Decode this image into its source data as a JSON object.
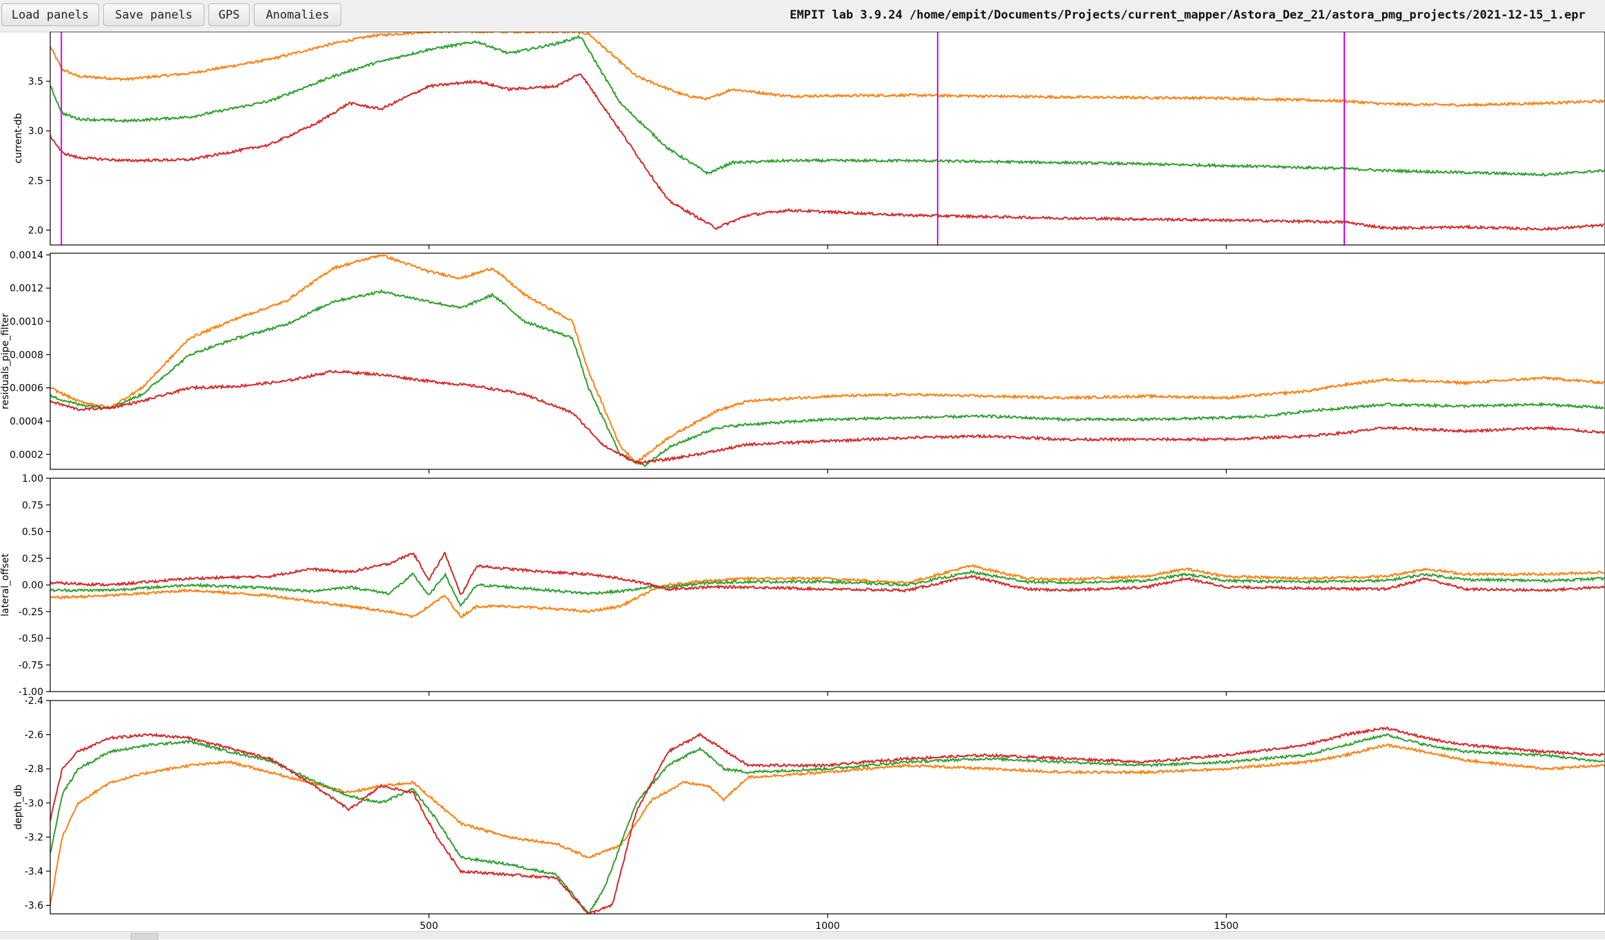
{
  "toolbar": {
    "buttons": [
      "Load panels",
      "Save panels",
      "GPS",
      "Anomalies"
    ],
    "title": "EMPIT lab 3.9.24 /home/empit/Documents/Projects/current_mapper/Astora_Dez_21/astora_pmg_projects/2021-12-15_1.epr"
  },
  "colors": {
    "orange": "#ff7f0e",
    "green": "#2ca02c",
    "red": "#d62728",
    "marker": "#e000e0"
  },
  "chart_data": [
    {
      "type": "line",
      "ylabel": "current-db",
      "xlim": [
        25,
        1975
      ],
      "ylim": [
        1.85,
        4.0
      ],
      "yticks": [
        2.0,
        2.5,
        3.0,
        3.5
      ],
      "ytick_labels": [
        "2.0",
        "2.5",
        "3.0",
        "3.5"
      ],
      "xticks": [
        500,
        1000,
        1500
      ],
      "vertical_markers": [
        39,
        1138,
        1648
      ],
      "series": [
        {
          "color": "orange",
          "x": [
            25,
            40,
            60,
            120,
            200,
            300,
            380,
            430,
            500,
            560,
            620,
            680,
            700,
            760,
            820,
            850,
            880,
            950,
            1100,
            1300,
            1500,
            1650,
            1700,
            1800,
            1900,
            1975
          ],
          "y": [
            3.85,
            3.62,
            3.55,
            3.52,
            3.58,
            3.72,
            3.88,
            3.96,
            4.0,
            4.0,
            4.0,
            4.0,
            3.98,
            3.55,
            3.36,
            3.32,
            3.42,
            3.35,
            3.36,
            3.34,
            3.33,
            3.3,
            3.27,
            3.26,
            3.28,
            3.3
          ]
        },
        {
          "color": "green",
          "x": [
            25,
            40,
            60,
            120,
            200,
            300,
            380,
            430,
            500,
            560,
            600,
            660,
            690,
            740,
            800,
            850,
            880,
            950,
            1100,
            1300,
            1500,
            1650,
            1700,
            1800,
            1900,
            1975
          ],
          "y": [
            3.45,
            3.18,
            3.12,
            3.1,
            3.14,
            3.3,
            3.55,
            3.68,
            3.82,
            3.9,
            3.78,
            3.88,
            3.95,
            3.28,
            2.82,
            2.57,
            2.68,
            2.7,
            2.7,
            2.68,
            2.65,
            2.62,
            2.6,
            2.58,
            2.56,
            2.6
          ]
        },
        {
          "color": "red",
          "x": [
            25,
            40,
            60,
            120,
            200,
            300,
            360,
            400,
            440,
            500,
            560,
            600,
            660,
            690,
            740,
            800,
            860,
            900,
            950,
            1100,
            1300,
            1500,
            1650,
            1700,
            1800,
            1900,
            1975
          ],
          "y": [
            2.95,
            2.78,
            2.73,
            2.7,
            2.71,
            2.86,
            3.08,
            3.28,
            3.22,
            3.45,
            3.5,
            3.42,
            3.45,
            3.58,
            3.0,
            2.3,
            2.02,
            2.15,
            2.2,
            2.15,
            2.12,
            2.1,
            2.08,
            2.02,
            2.03,
            2.01,
            2.05
          ]
        }
      ]
    },
    {
      "type": "line",
      "ylabel": "residuals_pipe_filter",
      "xlim": [
        25,
        1975
      ],
      "ylim": [
        0.00011,
        0.00141
      ],
      "yticks": [
        0.0002,
        0.0004,
        0.0006,
        0.0008,
        0.001,
        0.0012,
        0.0014
      ],
      "ytick_labels": [
        "0.0002",
        "0.0004",
        "0.0006",
        "0.0008",
        "0.0010",
        "0.0012",
        "0.0014"
      ],
      "xticks": [
        500,
        1000,
        1500
      ],
      "series": [
        {
          "color": "orange",
          "x": [
            25,
            60,
            100,
            140,
            200,
            260,
            320,
            380,
            440,
            500,
            540,
            580,
            620,
            680,
            700,
            740,
            760,
            800,
            860,
            900,
            1000,
            1100,
            1200,
            1300,
            1400,
            1500,
            1550,
            1600,
            1650,
            1700,
            1800,
            1900,
            1975
          ],
          "y": [
            0.0006,
            0.00052,
            0.00048,
            0.0006,
            0.0009,
            0.00102,
            0.00112,
            0.00132,
            0.0014,
            0.0013,
            0.00126,
            0.00132,
            0.00116,
            0.001,
            0.0007,
            0.00025,
            0.00015,
            0.0003,
            0.00046,
            0.00052,
            0.00055,
            0.00056,
            0.00055,
            0.00054,
            0.00055,
            0.00054,
            0.00056,
            0.00058,
            0.00062,
            0.00065,
            0.00063,
            0.00066,
            0.00063
          ]
        },
        {
          "color": "green",
          "x": [
            25,
            60,
            100,
            140,
            200,
            260,
            320,
            380,
            440,
            500,
            540,
            580,
            620,
            680,
            700,
            740,
            770,
            800,
            860,
            900,
            1000,
            1100,
            1200,
            1300,
            1400,
            1500,
            1550,
            1600,
            1650,
            1700,
            1800,
            1900,
            1975
          ],
          "y": [
            0.00055,
            0.0005,
            0.00048,
            0.00056,
            0.0008,
            0.0009,
            0.00098,
            0.00112,
            0.00118,
            0.00112,
            0.00108,
            0.00116,
            0.001,
            0.0009,
            0.0006,
            0.0002,
            0.00013,
            0.00024,
            0.00036,
            0.00038,
            0.00041,
            0.00042,
            0.00043,
            0.00041,
            0.00041,
            0.00042,
            0.00043,
            0.00046,
            0.00048,
            0.0005,
            0.00049,
            0.0005,
            0.00048
          ]
        },
        {
          "color": "red",
          "x": [
            25,
            60,
            100,
            140,
            200,
            260,
            320,
            380,
            440,
            500,
            560,
            620,
            680,
            720,
            760,
            800,
            860,
            900,
            1000,
            1100,
            1200,
            1300,
            1400,
            1500,
            1550,
            1600,
            1650,
            1700,
            1800,
            1900,
            1975
          ],
          "y": [
            0.00052,
            0.00047,
            0.00048,
            0.00052,
            0.0006,
            0.00061,
            0.00064,
            0.0007,
            0.00068,
            0.00064,
            0.00061,
            0.00056,
            0.00045,
            0.00025,
            0.00015,
            0.00017,
            0.00022,
            0.00026,
            0.00028,
            0.0003,
            0.00031,
            0.00029,
            0.00029,
            0.00029,
            0.0003,
            0.00031,
            0.00033,
            0.00036,
            0.00034,
            0.00036,
            0.00033
          ]
        }
      ]
    },
    {
      "type": "line",
      "ylabel": "lateral_offset",
      "xlim": [
        25,
        1975
      ],
      "ylim": [
        -1.0,
        1.0
      ],
      "yticks": [
        -1.0,
        -0.75,
        -0.5,
        -0.25,
        0.0,
        0.25,
        0.5,
        0.75,
        1.0
      ],
      "ytick_labels": [
        "-1.00",
        "-0.75",
        "-0.50",
        "-0.25",
        "0.00",
        "0.25",
        "0.50",
        "0.75",
        "1.00"
      ],
      "xticks": [
        500,
        1000,
        1500
      ],
      "series": [
        {
          "color": "orange",
          "x": [
            25,
            100,
            200,
            300,
            350,
            400,
            450,
            480,
            500,
            520,
            540,
            560,
            600,
            650,
            700,
            740,
            780,
            800,
            850,
            900,
            1000,
            1100,
            1180,
            1250,
            1300,
            1400,
            1450,
            1500,
            1600,
            1700,
            1750,
            1800,
            1900,
            1975
          ],
          "y": [
            -0.12,
            -0.1,
            -0.05,
            -0.1,
            -0.15,
            -0.2,
            -0.25,
            -0.3,
            -0.2,
            -0.1,
            -0.3,
            -0.2,
            -0.2,
            -0.22,
            -0.25,
            -0.2,
            -0.05,
            0.0,
            0.04,
            0.06,
            0.06,
            0.02,
            0.18,
            0.06,
            0.05,
            0.08,
            0.15,
            0.08,
            0.06,
            0.08,
            0.15,
            0.1,
            0.1,
            0.12
          ]
        },
        {
          "color": "green",
          "x": [
            25,
            100,
            200,
            300,
            350,
            400,
            450,
            480,
            500,
            520,
            540,
            560,
            600,
            650,
            700,
            740,
            780,
            800,
            850,
            900,
            1000,
            1100,
            1180,
            1250,
            1300,
            1400,
            1450,
            1500,
            1600,
            1700,
            1750,
            1800,
            1900,
            1975
          ],
          "y": [
            -0.05,
            -0.05,
            0.0,
            -0.03,
            -0.06,
            -0.02,
            -0.08,
            0.1,
            -0.1,
            0.1,
            -0.2,
            0.0,
            -0.02,
            -0.05,
            -0.08,
            -0.06,
            -0.02,
            -0.02,
            0.02,
            0.03,
            0.03,
            0.0,
            0.12,
            0.03,
            0.02,
            0.04,
            0.1,
            0.04,
            0.03,
            0.04,
            0.1,
            0.05,
            0.04,
            0.06
          ]
        },
        {
          "color": "red",
          "x": [
            25,
            100,
            200,
            300,
            350,
            400,
            450,
            480,
            500,
            520,
            540,
            560,
            600,
            650,
            700,
            740,
            780,
            800,
            850,
            900,
            1000,
            1100,
            1180,
            1250,
            1300,
            1400,
            1450,
            1500,
            1600,
            1700,
            1750,
            1800,
            1900,
            1975
          ],
          "y": [
            0.02,
            0.0,
            0.06,
            0.08,
            0.15,
            0.12,
            0.2,
            0.3,
            0.05,
            0.3,
            -0.1,
            0.18,
            0.15,
            0.12,
            0.1,
            0.06,
            0.0,
            -0.04,
            -0.02,
            -0.02,
            -0.04,
            -0.05,
            0.08,
            -0.04,
            -0.05,
            -0.02,
            0.06,
            -0.02,
            -0.03,
            -0.04,
            0.06,
            -0.04,
            -0.05,
            -0.02
          ]
        }
      ]
    },
    {
      "type": "line",
      "ylabel": "depth_db",
      "xlim": [
        25,
        1975
      ],
      "ylim": [
        -3.65,
        -2.4
      ],
      "yticks": [
        -3.6,
        -3.4,
        -3.2,
        -3.0,
        -2.8,
        -2.6,
        -2.4
      ],
      "ytick_labels": [
        "-3.6",
        "-3.4",
        "-3.2",
        "-3.0",
        "-2.8",
        "-2.6",
        "-2.4"
      ],
      "xticks": [
        500,
        1000,
        1500
      ],
      "xtick_labels": [
        "500",
        "1000",
        "1500"
      ],
      "series": [
        {
          "color": "orange",
          "x": [
            25,
            40,
            60,
            100,
            150,
            200,
            250,
            300,
            350,
            400,
            440,
            480,
            510,
            540,
            600,
            660,
            700,
            740,
            780,
            820,
            850,
            870,
            900,
            1000,
            1100,
            1200,
            1300,
            1400,
            1500,
            1600,
            1650,
            1700,
            1750,
            1800,
            1900,
            1975
          ],
          "y": [
            -3.6,
            -3.2,
            -3.0,
            -2.88,
            -2.82,
            -2.78,
            -2.76,
            -2.82,
            -2.88,
            -2.94,
            -2.9,
            -2.88,
            -3.0,
            -3.12,
            -3.2,
            -3.24,
            -3.32,
            -3.25,
            -2.98,
            -2.88,
            -2.9,
            -2.98,
            -2.85,
            -2.82,
            -2.78,
            -2.8,
            -2.82,
            -2.82,
            -2.8,
            -2.76,
            -2.72,
            -2.66,
            -2.7,
            -2.75,
            -2.8,
            -2.78
          ]
        },
        {
          "color": "green",
          "x": [
            25,
            40,
            60,
            100,
            150,
            200,
            250,
            300,
            350,
            400,
            440,
            480,
            510,
            540,
            600,
            660,
            700,
            720,
            760,
            800,
            840,
            870,
            900,
            1000,
            1100,
            1200,
            1300,
            1400,
            1500,
            1600,
            1650,
            1700,
            1750,
            1800,
            1900,
            1975
          ],
          "y": [
            -3.3,
            -2.95,
            -2.8,
            -2.7,
            -2.66,
            -2.64,
            -2.7,
            -2.75,
            -2.86,
            -2.96,
            -3.0,
            -2.92,
            -3.1,
            -3.32,
            -3.36,
            -3.42,
            -3.65,
            -3.5,
            -3.0,
            -2.78,
            -2.68,
            -2.8,
            -2.82,
            -2.8,
            -2.76,
            -2.74,
            -2.76,
            -2.78,
            -2.76,
            -2.72,
            -2.66,
            -2.6,
            -2.66,
            -2.7,
            -2.72,
            -2.76
          ]
        },
        {
          "color": "red",
          "x": [
            25,
            40,
            60,
            100,
            150,
            200,
            250,
            300,
            350,
            400,
            440,
            480,
            510,
            540,
            600,
            660,
            700,
            730,
            760,
            800,
            840,
            880,
            900,
            1000,
            1100,
            1200,
            1300,
            1400,
            1500,
            1600,
            1650,
            1700,
            1750,
            1800,
            1900,
            1975
          ],
          "y": [
            -3.1,
            -2.8,
            -2.7,
            -2.62,
            -2.6,
            -2.62,
            -2.68,
            -2.74,
            -2.88,
            -3.04,
            -2.9,
            -2.94,
            -3.2,
            -3.4,
            -3.42,
            -3.44,
            -3.65,
            -3.6,
            -3.05,
            -2.7,
            -2.6,
            -2.72,
            -2.78,
            -2.78,
            -2.74,
            -2.72,
            -2.74,
            -2.76,
            -2.72,
            -2.66,
            -2.6,
            -2.56,
            -2.62,
            -2.66,
            -2.7,
            -2.72
          ]
        }
      ]
    }
  ]
}
